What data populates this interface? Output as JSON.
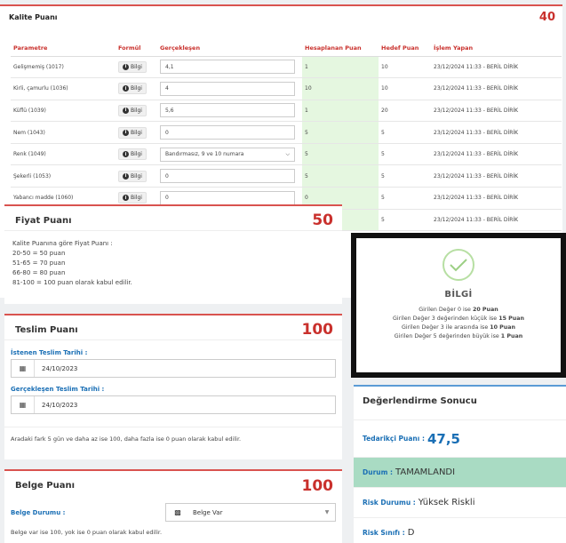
{
  "kalite": {
    "title": "Kalite Puanı",
    "score": "40",
    "headers": [
      "Parametre",
      "Formül",
      "Gerçekleşen",
      "Hesaplanan Puan",
      "Hedef Puan",
      "İşlem Yapan"
    ],
    "rows": [
      {
        "param": "Gelişmemiş (1017)",
        "formula": "Bilgi",
        "actual": "4,1",
        "calc": "1",
        "target": "10",
        "by": "23/12/2024 11:33 - BERİL DİRİK"
      },
      {
        "param": "Kirli, çamurlu (1036)",
        "formula": "Bilgi",
        "actual": "4",
        "calc": "10",
        "target": "10",
        "by": "23/12/2024 11:33 - BERİL DİRİK"
      },
      {
        "param": "Küflü (1039)",
        "formula": "Bilgi",
        "actual": "5,6",
        "calc": "1",
        "target": "20",
        "by": "23/12/2024 11:33 - BERİL DİRİK"
      },
      {
        "param": "Nem (1043)",
        "formula": "Bilgi",
        "actual": "0",
        "calc": "5",
        "target": "5",
        "by": "23/12/2024 11:33 - BERİL DİRİK"
      },
      {
        "param": "Renk (1049)",
        "formula": "Bilgi",
        "actual": "Bandırmasız, 9 ve 10 numara",
        "calc": "5",
        "target": "5",
        "by": "23/12/2024 11:33 - BERİL DİRİK"
      },
      {
        "param": "Şekerli (1053)",
        "formula": "Bilgi",
        "actual": "0",
        "calc": "5",
        "target": "5",
        "by": "23/12/2024 11:33 - BERİL DİRİK"
      },
      {
        "param": "Yabancı madde (1060)",
        "formula": "Bilgi",
        "actual": "0",
        "calc": "0",
        "target": "5",
        "by": "23/12/2024 11:33 - BERİL DİRİK"
      },
      {
        "param": "",
        "formula": "",
        "actual": "",
        "calc": "",
        "target": "5",
        "by": "23/12/2024 11:33 - BERİL DİRİK"
      }
    ]
  },
  "fiyat": {
    "title": "Fiyat Puanı",
    "score": "50",
    "lines": [
      "Kalite Puanına göre Fiyat Puanı :",
      "20-50 = 50 puan",
      "51-65 = 70 puan",
      "66-80 = 80 puan",
      "81-100 = 100 puan olarak kabul edilir."
    ]
  },
  "teslim": {
    "title": "Teslim Puanı",
    "score": "100",
    "requested_label": "İstenen Teslim Tarihi :",
    "requested_value": "24/10/2023",
    "actual_label": "Gerçekleşen Teslim Tarihi :",
    "actual_value": "24/10/2023",
    "note": "Aradaki fark 5 gün ve daha az ise 100, daha fazla ise 0 puan olarak kabul edilir."
  },
  "belge": {
    "title": "Belge Puanı",
    "score": "100",
    "status_label": "Belge Durumu :",
    "status_value": "Belge Var",
    "note": "Belge var ise 100, yok ise 0 puan olarak kabul edilir."
  },
  "modal": {
    "title": "BİLGİ",
    "lines": [
      {
        "pre": "Girilen Değer 0 ise ",
        "bold": "20 Puan"
      },
      {
        "pre": "Girilen Değer 3 değerinden küçük ise ",
        "bold": "15 Puan"
      },
      {
        "pre": "Girilen Değer 3 ile arasında ise ",
        "bold": "10 Puan"
      },
      {
        "pre": "Girilen Değer 5 değerinden büyük ise ",
        "bold": "1 Puan"
      }
    ]
  },
  "degerlendirme": {
    "title": "Değerlendirme Sonucu",
    "supplier_label": "Tedarikçi Puanı :",
    "supplier_value": "47,5",
    "status_label": "Durum :",
    "status_value": "TAMAMLANDI",
    "risk_label": "Risk Durumu :",
    "risk_value": "Yüksek Riskli",
    "class_label": "Risk Sınıfı :",
    "class_value": "D"
  },
  "colors": {
    "accent_red": "#c9302c",
    "link_blue": "#1a6fb5",
    "calc_green": "#e5f7e0",
    "status_green": "#a9dbc3"
  }
}
